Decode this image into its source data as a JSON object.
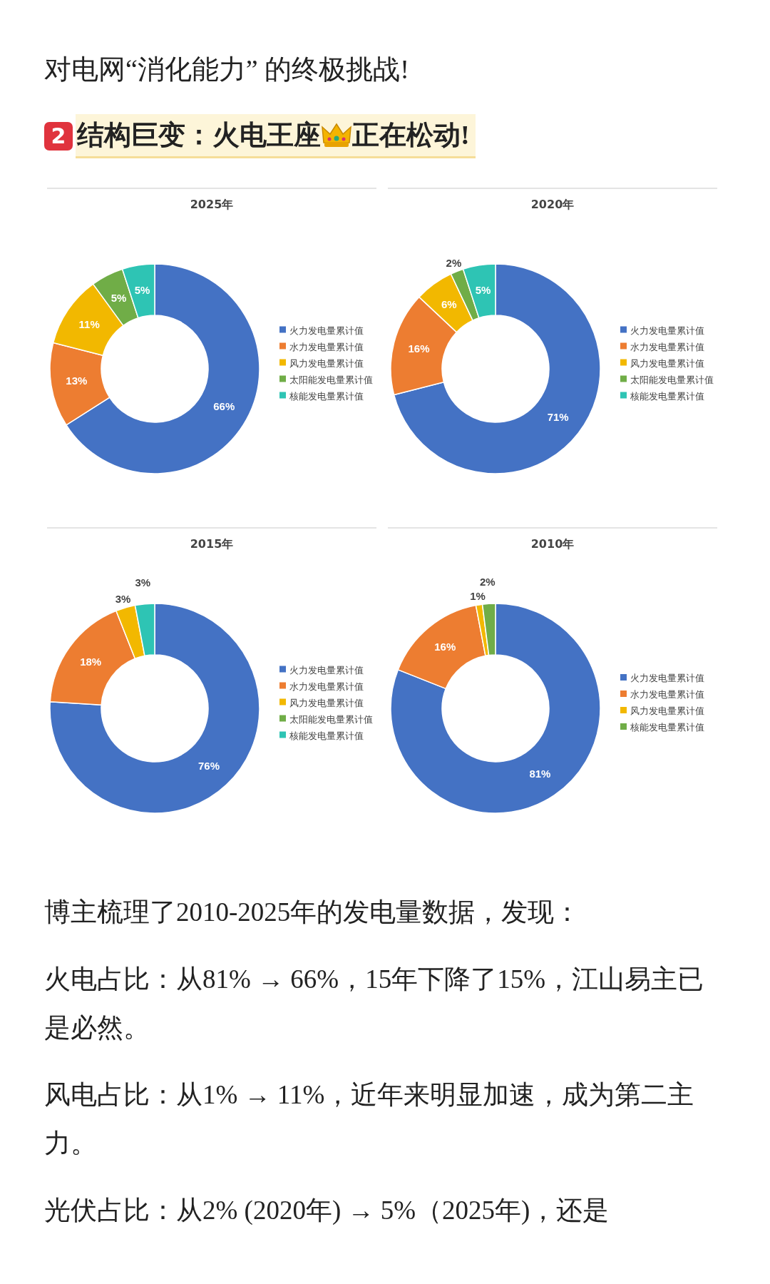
{
  "chart_data": [
    {
      "type": "donut",
      "title": "2025年",
      "legend": "right",
      "categories": [
        "火力发电量累计值",
        "水力发电量累计值",
        "风力发电量累计值",
        "太阳能发电量累计值",
        "核能发电量累计值"
      ],
      "values": [
        66,
        13,
        11,
        5,
        5
      ],
      "value_labels": [
        "66%",
        "13%",
        "11%",
        "5%",
        "5%"
      ],
      "colors": [
        "#4472c4",
        "#ed7d31",
        "#f2b800",
        "#70ad47",
        "#2ec4b4"
      ],
      "annotations": [
        "对电网“消化能力” 的终极挑战!",
        "2",
        "结构巨变：火电王座",
        "正在松动!"
      ]
    },
    {
      "type": "donut",
      "title": "2020年",
      "legend": "right",
      "categories": [
        "火力发电量累计值",
        "水力发电量累计值",
        "风力发电量累计值",
        "太阳能发电量累计值",
        "核能发电量累计值"
      ],
      "values": [
        71,
        16,
        6,
        2,
        5
      ],
      "value_labels": [
        "71%",
        "16%",
        "6%",
        "2%",
        "5%"
      ],
      "colors": [
        "#4472c4",
        "#ed7d31",
        "#f2b800",
        "#70ad47",
        "#2ec4b4"
      ]
    },
    {
      "type": "donut",
      "title": "2015年",
      "legend": "right",
      "categories": [
        "火力发电量累计值",
        "水力发电量累计值",
        "风力发电量累计值",
        "太阳能发电量累计值",
        "核能发电量累计值"
      ],
      "values": [
        76,
        18,
        3,
        0,
        3
      ],
      "value_labels": [
        "76%",
        "18%",
        "3%",
        null,
        "3%"
      ],
      "colors": [
        "#4472c4",
        "#ed7d31",
        "#f2b800",
        "#70ad47",
        "#2ec4b4"
      ]
    },
    {
      "type": "donut",
      "title": "2010年",
      "legend": "right",
      "categories": [
        "火力发电量累计值",
        "水力发电量累计值",
        "风力发电量累计值",
        "核能发电量累计值"
      ],
      "values": [
        81,
        16,
        1,
        2
      ],
      "value_labels": [
        "81%",
        "16%",
        "1%",
        "2%"
      ],
      "colors": [
        "#4472c4",
        "#ed7d31",
        "#f2b800",
        "#70ad47"
      ],
      "annotations": [
        "博主梳理了2010-2025年的发电量数据，发现：",
        "火电占比：从81% → 66%，15年下降了15%，江山易主已是必然。",
        "风电占比：从1% → 11%，近年来明显加速，成为第二主力。",
        "光伏占比：从2% (2020年) → 5%（2025年)，还是"
      ]
    }
  ]
}
